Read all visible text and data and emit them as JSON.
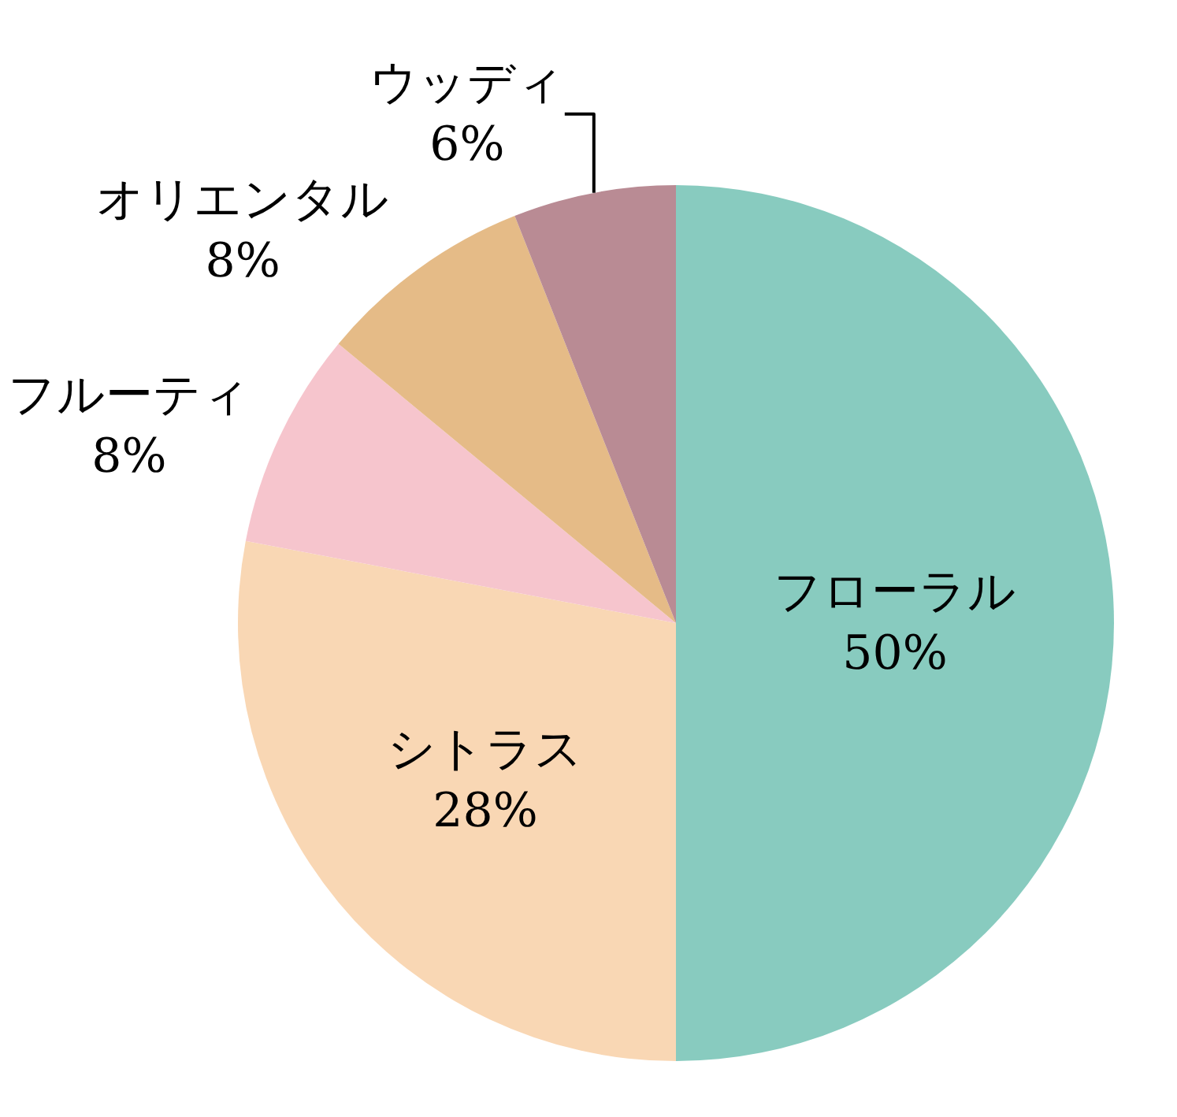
{
  "chart_data": {
    "type": "pie",
    "categories": [
      "フローラル",
      "シトラス",
      "フルーティ",
      "オリエンタル",
      "ウッディ"
    ],
    "values": [
      50,
      28,
      8,
      8,
      6
    ],
    "value_labels": [
      "50%",
      "28%",
      "8%",
      "8%",
      "6%"
    ],
    "colors": [
      "#88cbbf",
      "#f9d7b4",
      "#f6c5cd",
      "#e5bb87",
      "#b98b94"
    ],
    "legend": false
  }
}
